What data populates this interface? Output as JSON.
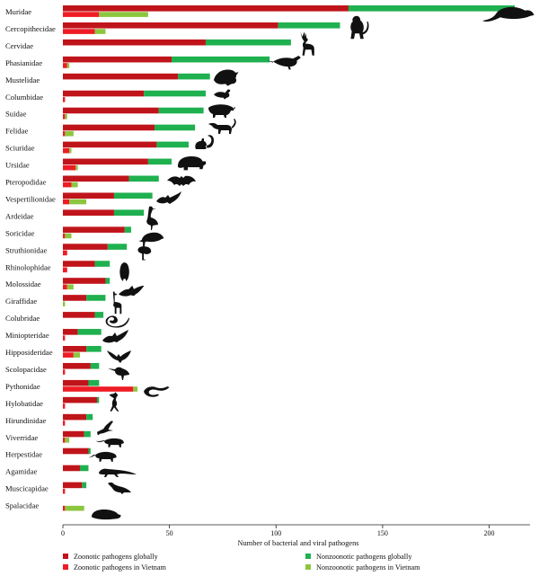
{
  "chart_data": {
    "type": "bar",
    "orientation": "horizontal",
    "stacked": true,
    "title": "",
    "xlabel": "Number of bacterial and viral pathogens",
    "ylabel": "",
    "xlim": [
      0,
      220
    ],
    "x_ticks": [
      0,
      50,
      100,
      150,
      200
    ],
    "grid": false,
    "legend_position": "bottom",
    "categories": [
      "Muridae",
      "Cercopithecidae",
      "Cervidae",
      "Phasianidae",
      "Mustelidae",
      "Columbidae",
      "Suidae",
      "Felidae",
      "Sciuridae",
      "Ursidae",
      "Pteropodidae",
      "Vespertilionidae",
      "Ardeidae",
      "Soricidae",
      "Struthionidae",
      "Rhinolophidae",
      "Molossidae",
      "Giraffidae",
      "Colubridae",
      "Miniopteridae",
      "Hipposideridae",
      "Scolopacidae",
      "Pythonidae",
      "Hylobatidae",
      "Hirundinidae",
      "Viverridae",
      "Herpestidae",
      "Agamidae",
      "Muscicapidae",
      "Spalacidae"
    ],
    "global_series": [
      {
        "name": "Zoonotic pathogens globally",
        "color": "#c0141b",
        "values": [
          134,
          101,
          67,
          51,
          54,
          38,
          45,
          43,
          44,
          40,
          31,
          24,
          24,
          29,
          21,
          15,
          20,
          11,
          15,
          7,
          11,
          13,
          12,
          16,
          11,
          10,
          12,
          8,
          9,
          0
        ]
      },
      {
        "name": "Nonzoonotic pathogens globally",
        "color": "#1fb04f",
        "values": [
          78,
          29,
          40,
          46,
          15,
          29,
          21,
          19,
          15,
          11,
          14,
          18,
          14,
          3,
          9,
          7,
          2,
          9,
          4,
          11,
          7,
          4,
          5,
          1,
          3,
          3,
          1,
          4,
          2,
          0
        ]
      }
    ],
    "vietnam_series": [
      {
        "name": "Zoonotic pathogens in Vietnam",
        "color": "#ee1c25",
        "values": [
          17,
          15,
          0,
          2,
          0,
          1,
          1,
          1,
          3,
          6,
          4,
          3,
          0,
          1,
          2,
          2,
          2,
          0,
          0,
          1,
          5,
          1,
          33,
          1,
          1,
          1,
          0,
          0,
          1,
          1
        ]
      },
      {
        "name": "Nonzoonotic pathogens in Vietnam",
        "color": "#8cc63f",
        "values": [
          23,
          5,
          0,
          1,
          0,
          0,
          1,
          4,
          1,
          1,
          3,
          8,
          0,
          3,
          0,
          0,
          3,
          1,
          0,
          0,
          3,
          0,
          2,
          0,
          0,
          2,
          0,
          0,
          0,
          9
        ]
      }
    ],
    "silhouette_icons": [
      "rat-icon",
      "monkey-icon",
      "deer-icon",
      "pheasant-icon",
      "weasel-icon",
      "dove-icon",
      "boar-icon",
      "cat-icon",
      "squirrel-icon",
      "bear-icon",
      "flying-fox-icon",
      "bat-icon",
      "heron-icon",
      "shrew-icon",
      "ostrich-icon",
      "horseshoe-bat-icon",
      "free-tailed-bat-icon",
      "giraffe-icon",
      "snake-icon",
      "bent-wing-bat-icon",
      "leaf-nosed-bat-icon",
      "sandpiper-icon",
      "python-icon",
      "gibbon-icon",
      "swallow-icon",
      "civet-icon",
      "mongoose-icon",
      "lizard-icon",
      "flycatcher-icon",
      "mole-rat-icon"
    ]
  }
}
